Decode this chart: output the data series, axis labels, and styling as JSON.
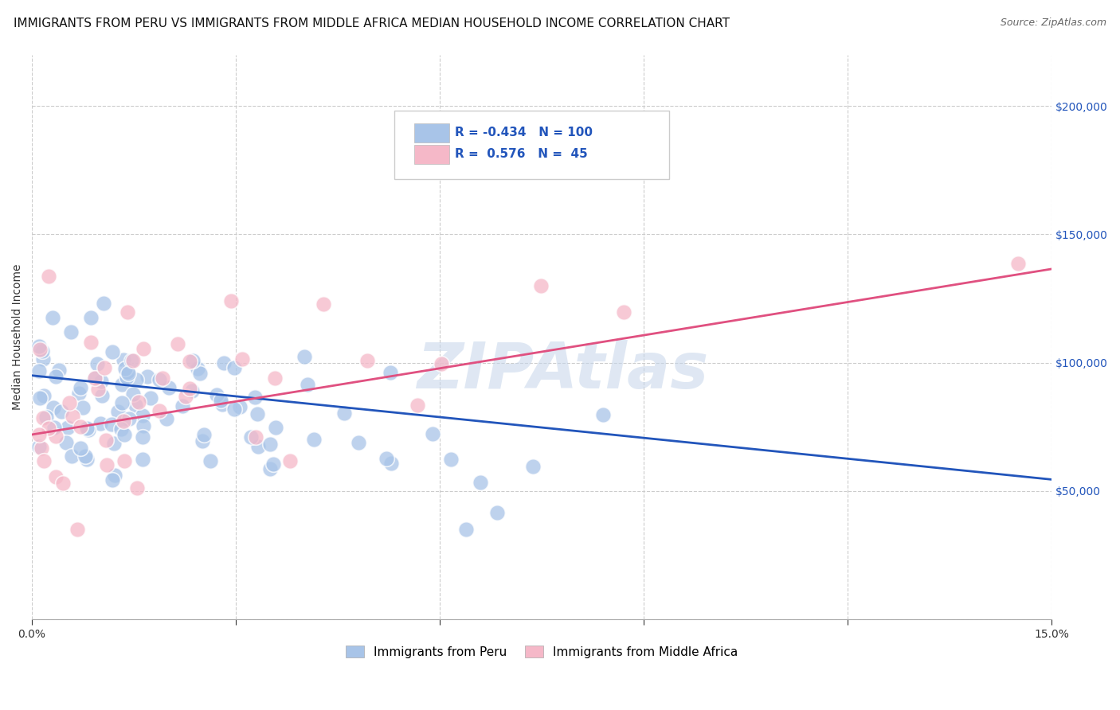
{
  "title": "IMMIGRANTS FROM PERU VS IMMIGRANTS FROM MIDDLE AFRICA MEDIAN HOUSEHOLD INCOME CORRELATION CHART",
  "source": "Source: ZipAtlas.com",
  "ylabel_text": "Median Household Income",
  "xlim": [
    0,
    0.15
  ],
  "ylim": [
    0,
    220000
  ],
  "yticks": [
    0,
    50000,
    100000,
    150000,
    200000
  ],
  "xticks": [
    0.0,
    0.03,
    0.06,
    0.09,
    0.12,
    0.15
  ],
  "peru_color": "#a8c4e8",
  "africa_color": "#f5b8c8",
  "peru_line_color": "#2255bb",
  "africa_line_color": "#e05080",
  "peru_R": -0.434,
  "peru_N": 100,
  "africa_R": 0.576,
  "africa_N": 45,
  "legend_peru_label": "Immigrants from Peru",
  "legend_africa_label": "Immigrants from Middle Africa",
  "watermark": "ZIPAtlas",
  "title_fontsize": 11,
  "axis_label_color": "#2255bb",
  "background_color": "#ffffff",
  "grid_color": "#cccccc",
  "peru_line_intercept": 95000,
  "peru_line_slope": -270000,
  "africa_line_intercept": 72000,
  "africa_line_slope": 430000
}
